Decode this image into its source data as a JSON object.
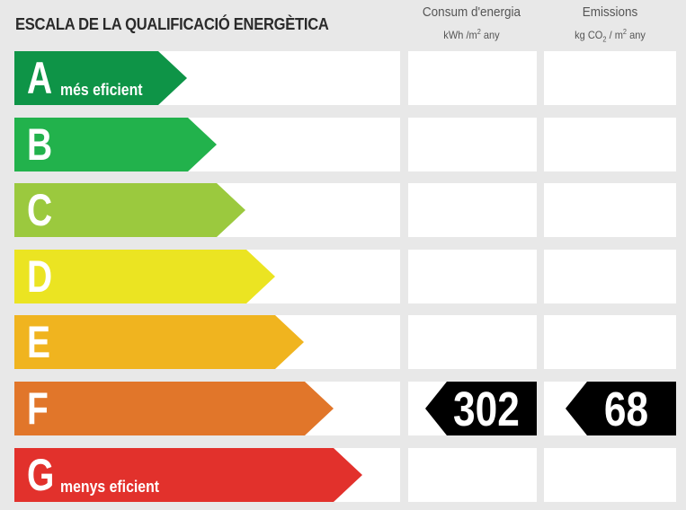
{
  "title": "ESCALA DE LA QUALIFICACIÓ ENERGÈTICA",
  "columns": {
    "consum": {
      "title": "Consum d'energia",
      "unit_pre": "kWh /m",
      "unit_sup": "2",
      "unit_post": " any"
    },
    "emissions": {
      "title": "Emissions",
      "unit_pre": "kg CO",
      "unit_sub": "2",
      "unit_mid": " / m",
      "unit_sup": "2",
      "unit_post": " any"
    }
  },
  "ratings": [
    {
      "letter": "A",
      "subtitle": "més eficient",
      "color": "#0e9447"
    },
    {
      "letter": "B",
      "subtitle": "",
      "color": "#22b24c"
    },
    {
      "letter": "C",
      "subtitle": "",
      "color": "#9bc93e"
    },
    {
      "letter": "D",
      "subtitle": "",
      "color": "#ebe422"
    },
    {
      "letter": "E",
      "subtitle": "",
      "color": "#f0b41f"
    },
    {
      "letter": "F",
      "subtitle": "",
      "color": "#e1762a"
    },
    {
      "letter": "G",
      "subtitle": "menys eficient",
      "color": "#e2312c"
    }
  ],
  "result": {
    "rating": "F",
    "consum_value": "302",
    "emissions_value": "68",
    "badge_color": "#000000"
  }
}
